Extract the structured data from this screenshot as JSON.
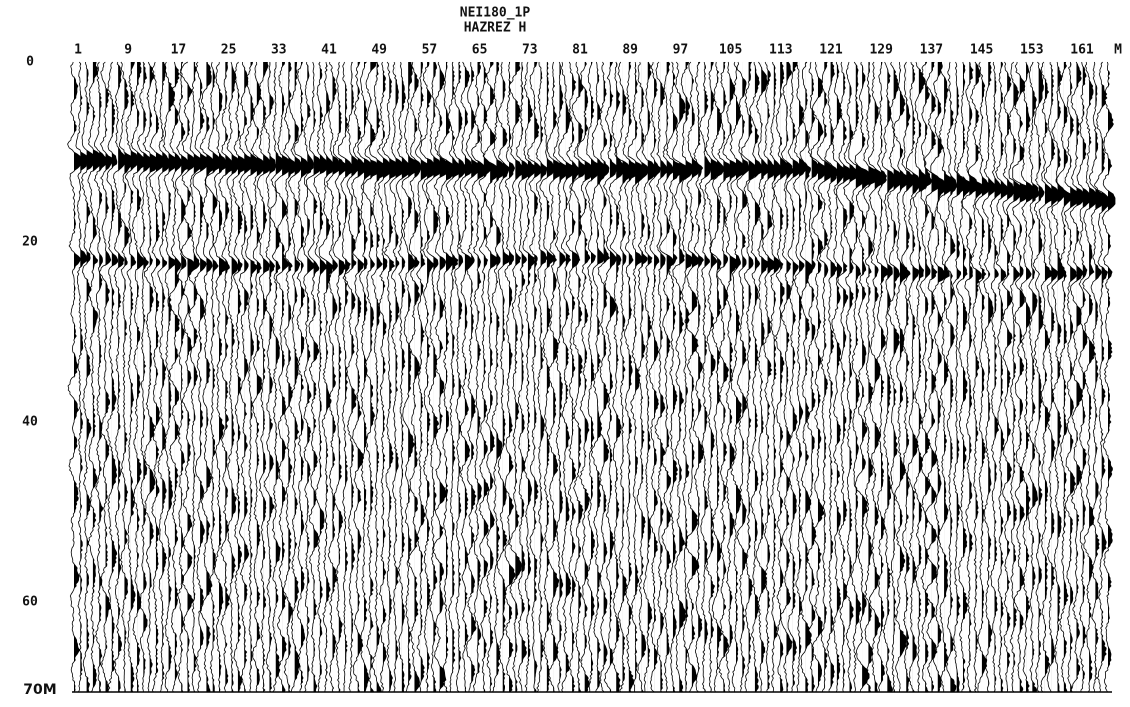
{
  "header": {
    "title_lines": [
      "NEI180_1P",
      "HAZREZ H"
    ]
  },
  "top_axis": {
    "labels": [
      "1",
      "9",
      "17",
      "25",
      "33",
      "41",
      "49",
      "57",
      "65",
      "73",
      "81",
      "89",
      "97",
      "105",
      "113",
      "121",
      "129",
      "137",
      "145",
      "153",
      "161"
    ],
    "unit": "M"
  },
  "left_axis": {
    "labels": [
      "0",
      "20",
      "40",
      "60"
    ],
    "bottom_label": "70M"
  }
}
